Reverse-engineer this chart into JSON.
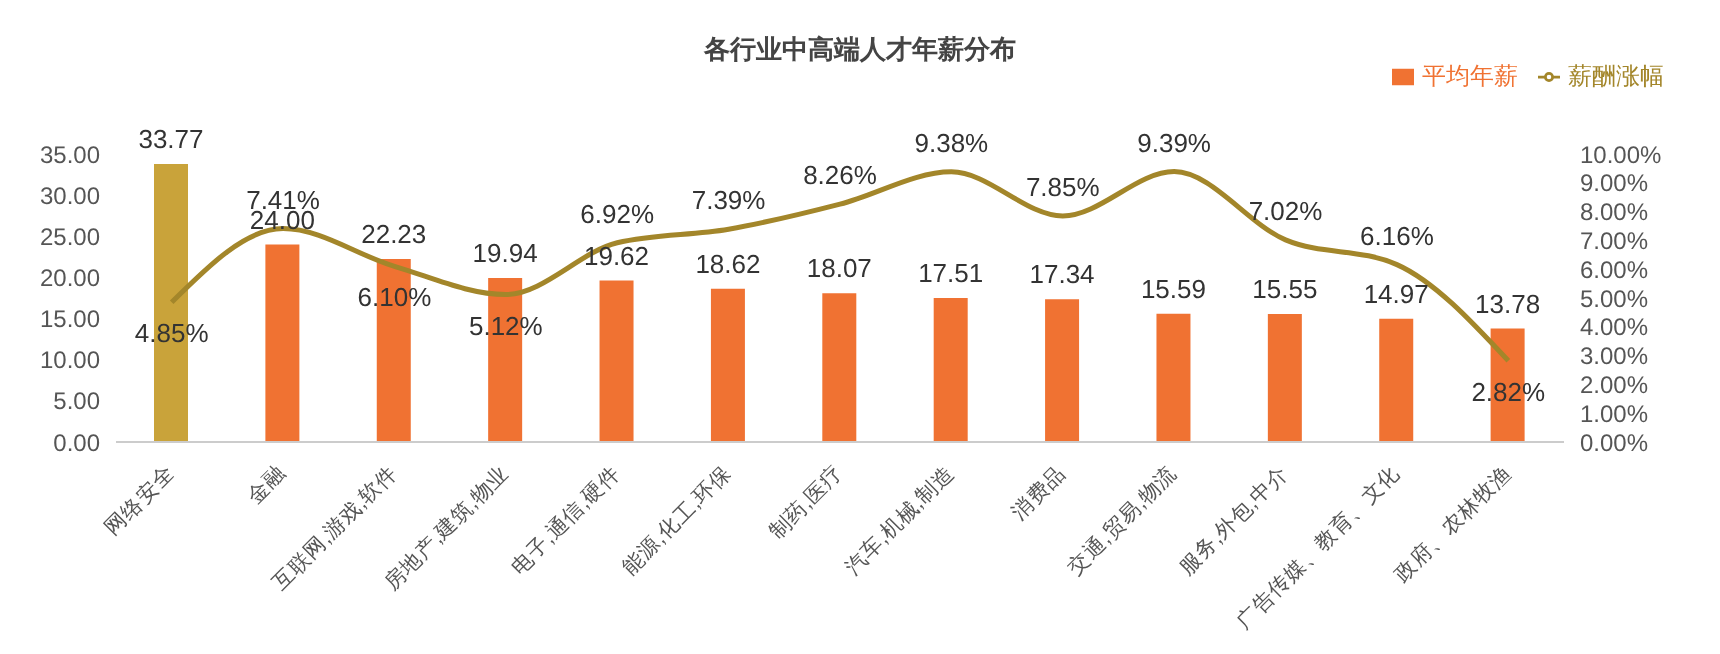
{
  "chart_data": {
    "type": "bar",
    "title": "各行业中高端人才年薪分布",
    "categories": [
      "网络安全",
      "金融",
      "互联网,游戏,软件",
      "房地产,建筑,物业",
      "电子,通信,硬件",
      "能源,化工,环保",
      "制药,医疗",
      "汽车,机械,制造",
      "消费品",
      "交通,贸易,物流",
      "服务,外包,中介",
      "广告传媒、教育、文化",
      "政府、农林牧渔"
    ],
    "series": [
      {
        "name": "平均年薪",
        "color": "#f07232",
        "colors": [
          "#c9a33a",
          "#f07232",
          "#f07232",
          "#f07232",
          "#f07232",
          "#f07232",
          "#f07232",
          "#f07232",
          "#f07232",
          "#f07232",
          "#f07232",
          "#f07232",
          "#f07232"
        ],
        "values": [
          33.77,
          24.0,
          22.23,
          19.94,
          19.62,
          18.62,
          18.07,
          17.51,
          17.34,
          15.59,
          15.55,
          14.97,
          13.78
        ],
        "value_labels": [
          "33.77",
          "24.00",
          "22.23",
          "19.94",
          "19.62",
          "18.62",
          "18.07",
          "17.51",
          "17.34",
          "15.59",
          "15.55",
          "14.97",
          "13.78"
        ]
      },
      {
        "name": "薪酬涨幅",
        "type": "line",
        "axis": "y2",
        "color": "#a3862a",
        "values": [
          4.85,
          7.41,
          6.1,
          5.12,
          6.92,
          7.39,
          8.26,
          9.38,
          7.85,
          9.39,
          7.02,
          6.16,
          2.82
        ],
        "value_labels": [
          "4.85%",
          "7.41%",
          "6.10%",
          "5.12%",
          "6.92%",
          "7.39%",
          "8.26%",
          "9.38%",
          "7.85%",
          "9.39%",
          "7.02%",
          "6.16%",
          "2.82%"
        ]
      }
    ],
    "ylim": [
      0,
      35
    ],
    "yticks": [
      {
        "value": 0,
        "label": "0.00"
      },
      {
        "value": 5,
        "label": "5.00"
      },
      {
        "value": 10,
        "label": "10.00"
      },
      {
        "value": 15,
        "label": "15.00"
      },
      {
        "value": 20,
        "label": "20.00"
      },
      {
        "value": 25,
        "label": "25.00"
      },
      {
        "value": 30,
        "label": "30.00"
      },
      {
        "value": 35,
        "label": "35.00"
      }
    ],
    "y2lim": [
      0,
      10
    ],
    "y2ticks": [
      {
        "value": 0,
        "label": "0.00%"
      },
      {
        "value": 1,
        "label": "1.00%"
      },
      {
        "value": 2,
        "label": "2.00%"
      },
      {
        "value": 3,
        "label": "3.00%"
      },
      {
        "value": 4,
        "label": "4.00%"
      },
      {
        "value": 5,
        "label": "5.00%"
      },
      {
        "value": 6,
        "label": "6.00%"
      },
      {
        "value": 7,
        "label": "7.00%"
      },
      {
        "value": 8,
        "label": "8.00%"
      },
      {
        "value": 9,
        "label": "9.00%"
      },
      {
        "value": 10,
        "label": "10.00%"
      }
    ],
    "legend": "top right",
    "grid": false
  }
}
